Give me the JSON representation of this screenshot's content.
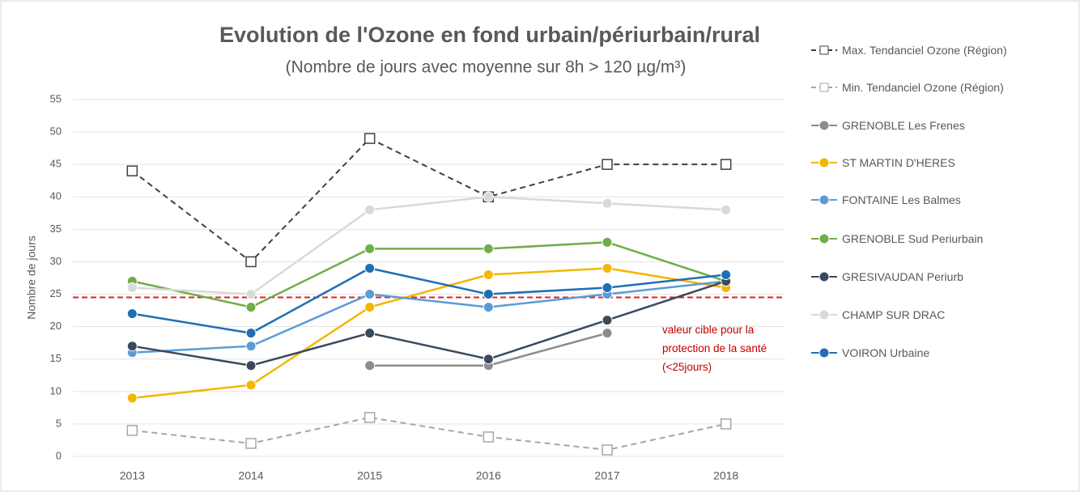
{
  "chart_data": {
    "type": "line",
    "title": "Evolution de l'Ozone en fond urbain/périurbain/rural",
    "subtitle": "(Nombre de jours avec moyenne sur 8h > 120 µg/m³)",
    "y_label": "Nombre de jours",
    "categories": [
      "2013",
      "2014",
      "2015",
      "2016",
      "2017",
      "2018"
    ],
    "ylim": [
      0,
      55
    ],
    "yticks": [
      0,
      5,
      10,
      15,
      20,
      25,
      30,
      35,
      40,
      45,
      50,
      55
    ],
    "grid": true,
    "legend": "right",
    "series": [
      {
        "name": "Max. Tendanciel Ozone (Région)",
        "color": "#404040",
        "dash": true,
        "marker": "square",
        "values": [
          44,
          30,
          49,
          40,
          45,
          45
        ]
      },
      {
        "name": "Min. Tendanciel Ozone (Région)",
        "color": "#a6a6a6",
        "dash": true,
        "marker": "square",
        "values": [
          4,
          2,
          6,
          3,
          1,
          5
        ]
      },
      {
        "name": "GRENOBLE Les Frenes",
        "color": "#8c8c8c",
        "marker": "circle",
        "values": [
          null,
          null,
          14,
          14,
          19,
          null
        ]
      },
      {
        "name": "ST MARTIN D'HERES",
        "color": "#f2b700",
        "marker": "circle",
        "values": [
          9,
          11,
          23,
          28,
          29,
          26
        ]
      },
      {
        "name": "FONTAINE Les Balmes",
        "color": "#5b9bd5",
        "marker": "circle",
        "values": [
          16,
          17,
          25,
          23,
          25,
          27
        ]
      },
      {
        "name": "GRENOBLE Sud Periurbain",
        "color": "#70ad47",
        "marker": "circle",
        "values": [
          27,
          23,
          32,
          32,
          33,
          27
        ]
      },
      {
        "name": "GRESIVAUDAN Periurb",
        "color": "#3a4a5e",
        "marker": "circle",
        "values": [
          17,
          14,
          19,
          15,
          21,
          27
        ]
      },
      {
        "name": "CHAMP SUR DRAC",
        "color": "#d9d9d9",
        "marker": "circle",
        "values": [
          26,
          25,
          38,
          40,
          39,
          38
        ]
      },
      {
        "name": "VOIRON Urbaine",
        "color": "#1f6fb5",
        "marker": "circle",
        "values": [
          22,
          19,
          29,
          25,
          26,
          28
        ]
      }
    ],
    "reference_line": {
      "value": 24.5,
      "color": "#e02020",
      "label": "valeur cible pour la protection de la santé (<25jours)"
    }
  }
}
